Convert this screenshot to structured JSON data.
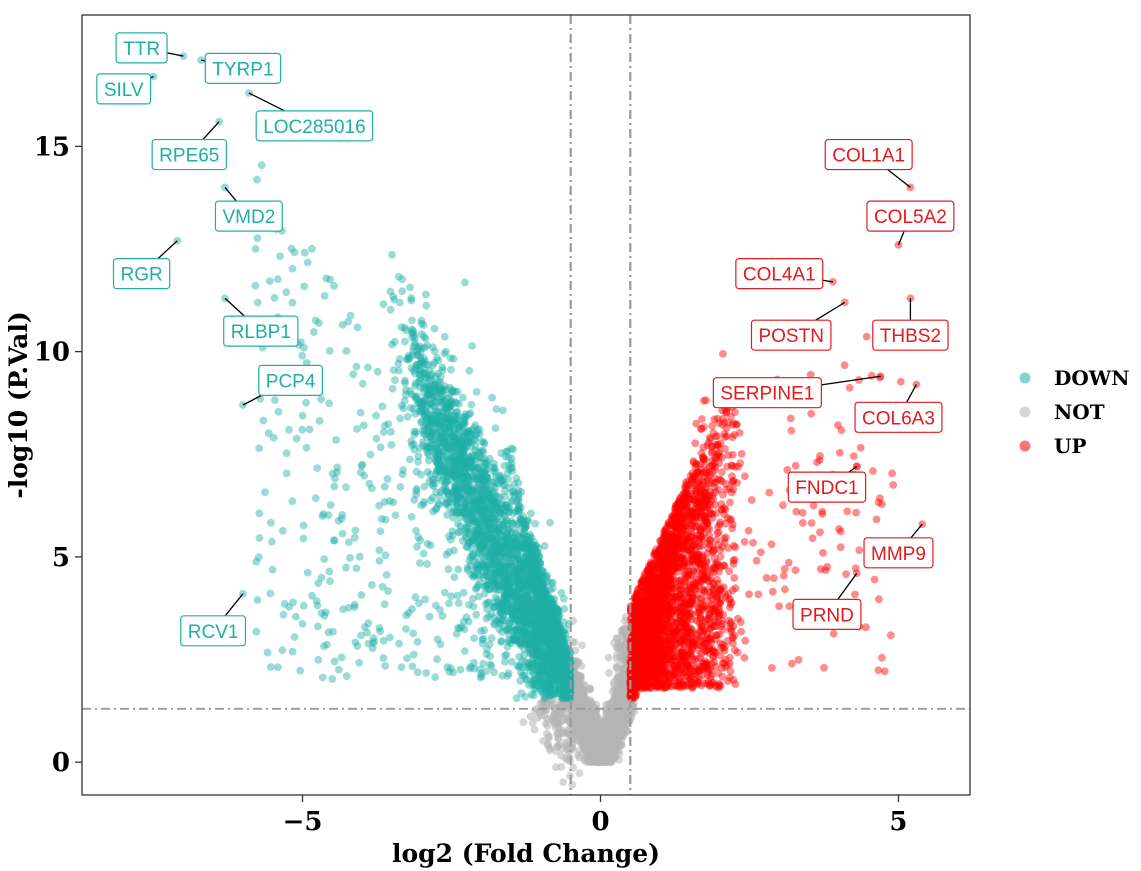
{
  "chart_data": {
    "type": "scatter",
    "title": "",
    "xlabel": "log2 (Fold Change)",
    "ylabel": "-log10 (P.Val)",
    "xlim": [
      -8.7,
      6.2
    ],
    "ylim": [
      -0.8,
      18.2
    ],
    "xticks": [
      -5,
      0,
      5
    ],
    "xtick_labels": [
      "−5",
      "0",
      "5"
    ],
    "yticks": [
      0,
      5,
      10,
      15
    ],
    "ytick_labels": [
      "0",
      "5",
      "10",
      "15"
    ],
    "grid": false,
    "legend_position": "right",
    "thresholds": {
      "log2fc": [
        -0.5,
        0.5
      ],
      "neg_log10_p": 1.3
    },
    "series": [
      {
        "name": "DOWN",
        "color": "#1eb0a6"
      },
      {
        "name": "NOT",
        "color": "#b4b4b4"
      },
      {
        "name": "UP",
        "color": "#ff0000"
      }
    ],
    "labeled_genes": [
      {
        "gene": "TTR",
        "group": "DOWN",
        "x": -7.0,
        "y": 17.2,
        "label_x": -7.7,
        "label_y": 17.4
      },
      {
        "gene": "TYRP1",
        "group": "DOWN",
        "x": -6.7,
        "y": 17.1,
        "label_x": -6.0,
        "label_y": 16.9
      },
      {
        "gene": "SILV",
        "group": "DOWN",
        "x": -7.5,
        "y": 16.7,
        "label_x": -8.0,
        "label_y": 16.4
      },
      {
        "gene": "LOC285016",
        "group": "DOWN",
        "x": -5.9,
        "y": 16.3,
        "label_x": -4.8,
        "label_y": 15.5
      },
      {
        "gene": "RPE65",
        "group": "DOWN",
        "x": -6.4,
        "y": 15.6,
        "label_x": -6.9,
        "label_y": 14.8
      },
      {
        "gene": "VMD2",
        "group": "DOWN",
        "x": -6.3,
        "y": 14.0,
        "label_x": -5.9,
        "label_y": 13.3
      },
      {
        "gene": "RGR",
        "group": "DOWN",
        "x": -7.1,
        "y": 12.7,
        "label_x": -7.7,
        "label_y": 11.9
      },
      {
        "gene": "RLBP1",
        "group": "DOWN",
        "x": -6.3,
        "y": 11.3,
        "label_x": -5.7,
        "label_y": 10.5
      },
      {
        "gene": "PCP4",
        "group": "DOWN",
        "x": -6.0,
        "y": 8.7,
        "label_x": -5.2,
        "label_y": 9.3
      },
      {
        "gene": "RCV1",
        "group": "DOWN",
        "x": -6.0,
        "y": 4.1,
        "label_x": -6.5,
        "label_y": 3.2
      },
      {
        "gene": "COL1A1",
        "group": "UP",
        "x": 5.2,
        "y": 14.0,
        "label_x": 4.5,
        "label_y": 14.8
      },
      {
        "gene": "COL5A2",
        "group": "UP",
        "x": 5.0,
        "y": 12.6,
        "label_x": 5.2,
        "label_y": 13.3
      },
      {
        "gene": "COL4A1",
        "group": "UP",
        "x": 3.9,
        "y": 11.7,
        "label_x": 3.0,
        "label_y": 11.9
      },
      {
        "gene": "POSTN",
        "group": "UP",
        "x": 4.1,
        "y": 11.2,
        "label_x": 3.2,
        "label_y": 10.4
      },
      {
        "gene": "THBS2",
        "group": "UP",
        "x": 5.2,
        "y": 11.3,
        "label_x": 5.2,
        "label_y": 10.4
      },
      {
        "gene": "SERPINE1",
        "group": "UP",
        "x": 4.7,
        "y": 9.4,
        "label_x": 2.8,
        "label_y": 9.0
      },
      {
        "gene": "COL6A3",
        "group": "UP",
        "x": 5.3,
        "y": 9.2,
        "label_x": 5.0,
        "label_y": 8.4
      },
      {
        "gene": "FNDC1",
        "group": "UP",
        "x": 4.3,
        "y": 7.2,
        "label_x": 3.8,
        "label_y": 6.7
      },
      {
        "gene": "MMP9",
        "group": "UP",
        "x": 5.4,
        "y": 5.8,
        "label_x": 5.0,
        "label_y": 5.1
      },
      {
        "gene": "PRND",
        "group": "UP",
        "x": 4.3,
        "y": 4.6,
        "label_x": 3.8,
        "label_y": 3.6
      }
    ]
  }
}
